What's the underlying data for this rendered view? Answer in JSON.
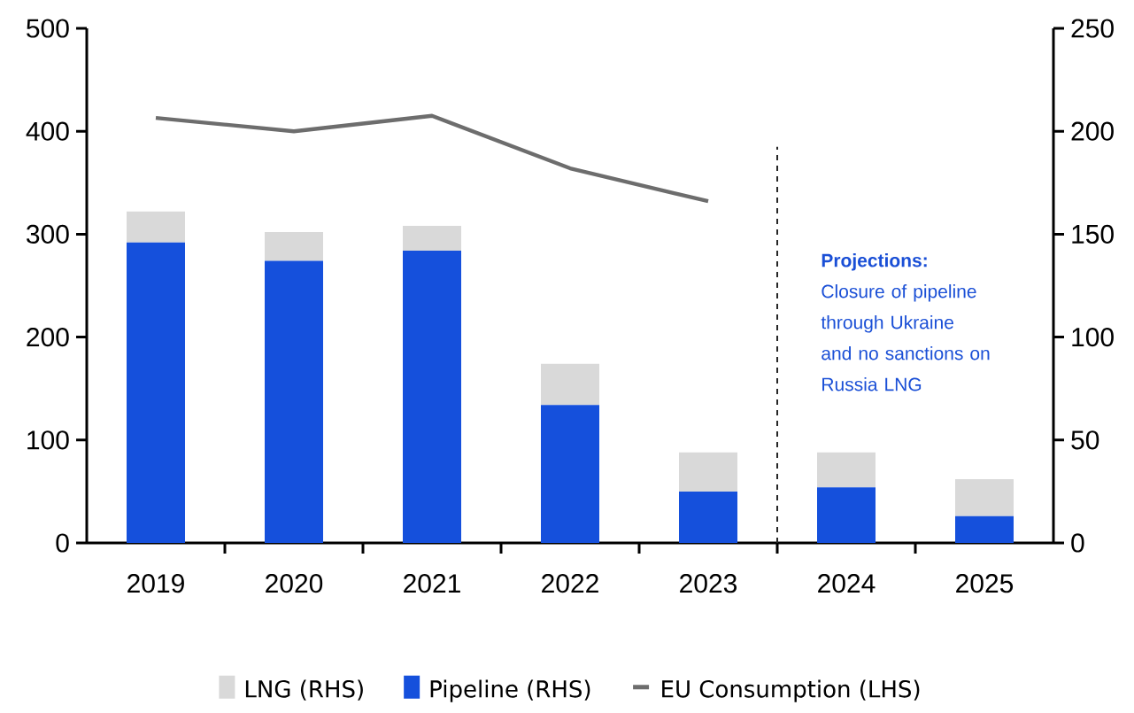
{
  "chart_data": {
    "type": "bar",
    "stacked": true,
    "categories": [
      "2019",
      "2020",
      "2021",
      "2022",
      "2023",
      "2024",
      "2025"
    ],
    "series": [
      {
        "name": "Pipeline (RHS)",
        "axis": "y2",
        "color": "#1550dc",
        "values": [
          146,
          137,
          142,
          67,
          25,
          27,
          13
        ]
      },
      {
        "name": "LNG (RHS)",
        "axis": "y2",
        "color": "#d9d9d9",
        "values": [
          15,
          14,
          12,
          20,
          19,
          17,
          18
        ]
      },
      {
        "name": "EU Consumption (LHS)",
        "type": "line",
        "axis": "y",
        "color": "#6d6d6d",
        "values": [
          413,
          400,
          415,
          364,
          332,
          null,
          null
        ]
      }
    ],
    "ylim": [
      0,
      500
    ],
    "yticks": [
      0,
      100,
      200,
      300,
      400,
      500
    ],
    "y2lim": [
      0,
      250
    ],
    "y2ticks": [
      0,
      50,
      100,
      150,
      200,
      250
    ],
    "annotations": [
      "Projections:",
      "Closure of pipeline through Ukraine and no sanctions on Russia LNG"
    ],
    "legend": "bottom",
    "grid": false
  }
}
